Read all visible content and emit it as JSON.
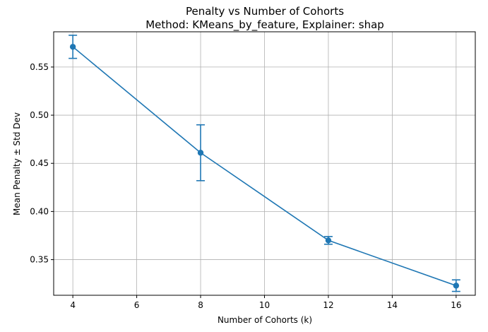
{
  "chart_data": {
    "type": "line",
    "title": "Penalty vs Number of Cohorts",
    "subtitle": "Method: KMeans_by_feature, Explainer: shap",
    "xlabel": "Number of Cohorts (k)",
    "ylabel": "Mean Penalty ± Std Dev",
    "x": [
      4,
      8,
      12,
      16
    ],
    "series": [
      {
        "values": [
          0.571,
          0.461,
          0.37,
          0.323
        ],
        "std": [
          0.012,
          0.029,
          0.004,
          0.006
        ]
      }
    ],
    "xlim": [
      3.4,
      16.6
    ],
    "ylim": [
      0.313,
      0.5866
    ],
    "xticks": [
      4,
      6,
      8,
      10,
      12,
      14,
      16
    ],
    "xtick_labels": [
      "4",
      "6",
      "8",
      "10",
      "12",
      "14",
      "16"
    ],
    "yticks": [
      0.35,
      0.4,
      0.45,
      0.5,
      0.55
    ],
    "ytick_labels": [
      "0.35",
      "0.40",
      "0.45",
      "0.50",
      "0.55"
    ],
    "grid": true,
    "color": "#1f77b4"
  }
}
